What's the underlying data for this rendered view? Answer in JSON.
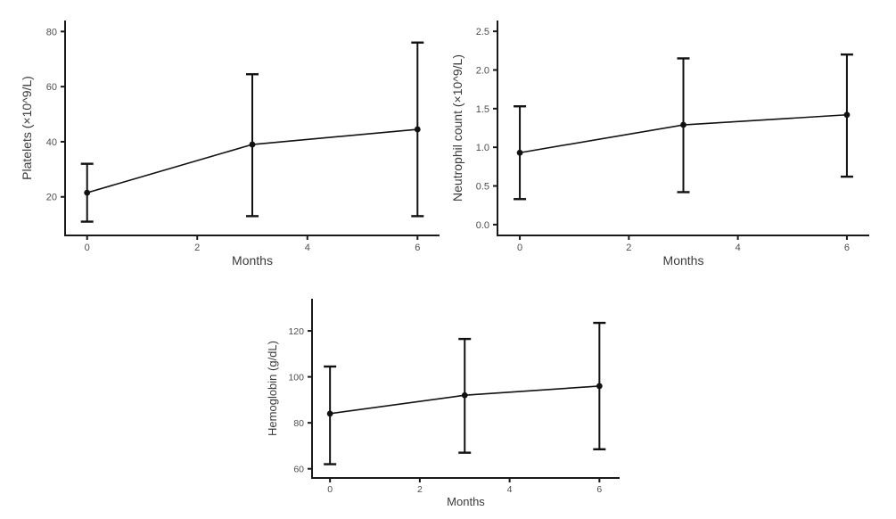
{
  "page": {
    "background": "#ffffff"
  },
  "colors": {
    "axis_line": "#1a1a1a",
    "tick_label": "#4e4e4e",
    "axis_title": "#3a3a3a",
    "data_color": "#111111"
  },
  "chart_data": [
    {
      "id": "platelets",
      "type": "line",
      "title": "",
      "xlabel": "Months",
      "ylabel": "Platelets (×10^9/L)",
      "x": [
        0,
        3,
        6
      ],
      "series": [
        {
          "name": "mean",
          "values": [
            21.5,
            39,
            44.5
          ]
        }
      ],
      "error_low": [
        11,
        13,
        13
      ],
      "error_high": [
        32,
        64.5,
        76
      ],
      "xticks": [
        0,
        2,
        4,
        6
      ],
      "xtick_labels": [
        "0",
        "2",
        "4",
        "6"
      ],
      "yticks": [
        20,
        40,
        60,
        80
      ],
      "ytick_labels": [
        "20",
        "40",
        "60",
        "80"
      ],
      "xlim": [
        -0.4,
        6.4
      ],
      "ylim": [
        6,
        84
      ],
      "grid": false,
      "legend": false,
      "marker": "circle",
      "error_bars": true
    },
    {
      "id": "neutrophil",
      "type": "line",
      "title": "",
      "xlabel": "Months",
      "ylabel": "Neutrophil count (×10^9/L)",
      "x": [
        0,
        3,
        6
      ],
      "series": [
        {
          "name": "mean",
          "values": [
            0.93,
            1.29,
            1.42
          ]
        }
      ],
      "error_low": [
        0.33,
        0.42,
        0.62
      ],
      "error_high": [
        1.53,
        2.15,
        2.2
      ],
      "xticks": [
        0,
        2,
        4,
        6
      ],
      "xtick_labels": [
        "0",
        "2",
        "4",
        "6"
      ],
      "yticks": [
        0,
        0.5,
        1,
        1.5,
        2,
        2.5
      ],
      "ytick_labels": [
        "0.0",
        "0.5",
        "1.0",
        "1.5",
        "2.0",
        "2.5"
      ],
      "xlim": [
        -0.41,
        6.41
      ],
      "ylim": [
        -0.14,
        2.64
      ],
      "grid": false,
      "legend": false,
      "marker": "circle",
      "error_bars": true
    },
    {
      "id": "hemoglobin",
      "type": "line",
      "title": "",
      "xlabel": "Months",
      "ylabel": "Hemoglobin (g/dL)",
      "x": [
        0,
        3,
        6
      ],
      "series": [
        {
          "name": "mean",
          "values": [
            84,
            92,
            96
          ]
        }
      ],
      "error_low": [
        62,
        67,
        68.5
      ],
      "error_high": [
        104.5,
        116.5,
        123.5
      ],
      "xticks": [
        0,
        2,
        4,
        6
      ],
      "xtick_labels": [
        "0",
        "2",
        "4",
        "6"
      ],
      "yticks": [
        60,
        80,
        100,
        120
      ],
      "ytick_labels": [
        "60",
        "80",
        "100",
        "120"
      ],
      "xlim": [
        -0.4,
        6.45
      ],
      "ylim": [
        56,
        134
      ],
      "grid": false,
      "legend": false,
      "marker": "circle",
      "error_bars": true
    }
  ]
}
